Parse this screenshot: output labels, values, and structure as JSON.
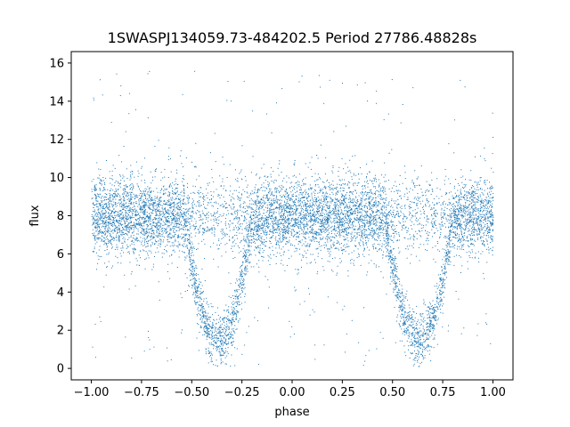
{
  "chart_data": {
    "type": "scatter",
    "title": "1SWASPJ134059.73-484202.5 Period 27786.48828s",
    "xlabel": "phase",
    "ylabel": "flux",
    "xlim": [
      -1.1,
      1.1
    ],
    "ylim": [
      -0.6,
      16.6
    ],
    "xticks": [
      -1.0,
      -0.75,
      -0.5,
      -0.25,
      0.0,
      0.25,
      0.5,
      0.75,
      1.0
    ],
    "xtick_labels": [
      "−1.00",
      "−0.75",
      "−0.50",
      "−0.25",
      "0.00",
      "0.25",
      "0.50",
      "0.75",
      "1.00"
    ],
    "yticks": [
      0,
      2,
      4,
      6,
      8,
      10,
      12,
      14,
      16
    ],
    "ytick_labels": [
      "0",
      "2",
      "4",
      "6",
      "8",
      "10",
      "12",
      "14",
      "16"
    ],
    "grid": false,
    "legend": "none",
    "marker_color": "#1f77b4",
    "series": [
      {
        "phase_range": [
          -1.0,
          1.0
        ],
        "baseline_flux": 8.0,
        "baseline_scatter": 1.0,
        "eclipses": [
          {
            "center_phase": -0.37,
            "min_flux": 1.5,
            "half_width": 0.17
          },
          {
            "center_phase": 0.63,
            "min_flux": 1.5,
            "half_width": 0.17
          }
        ],
        "flux_max": 15.6,
        "flux_min": 0.1
      }
    ]
  }
}
